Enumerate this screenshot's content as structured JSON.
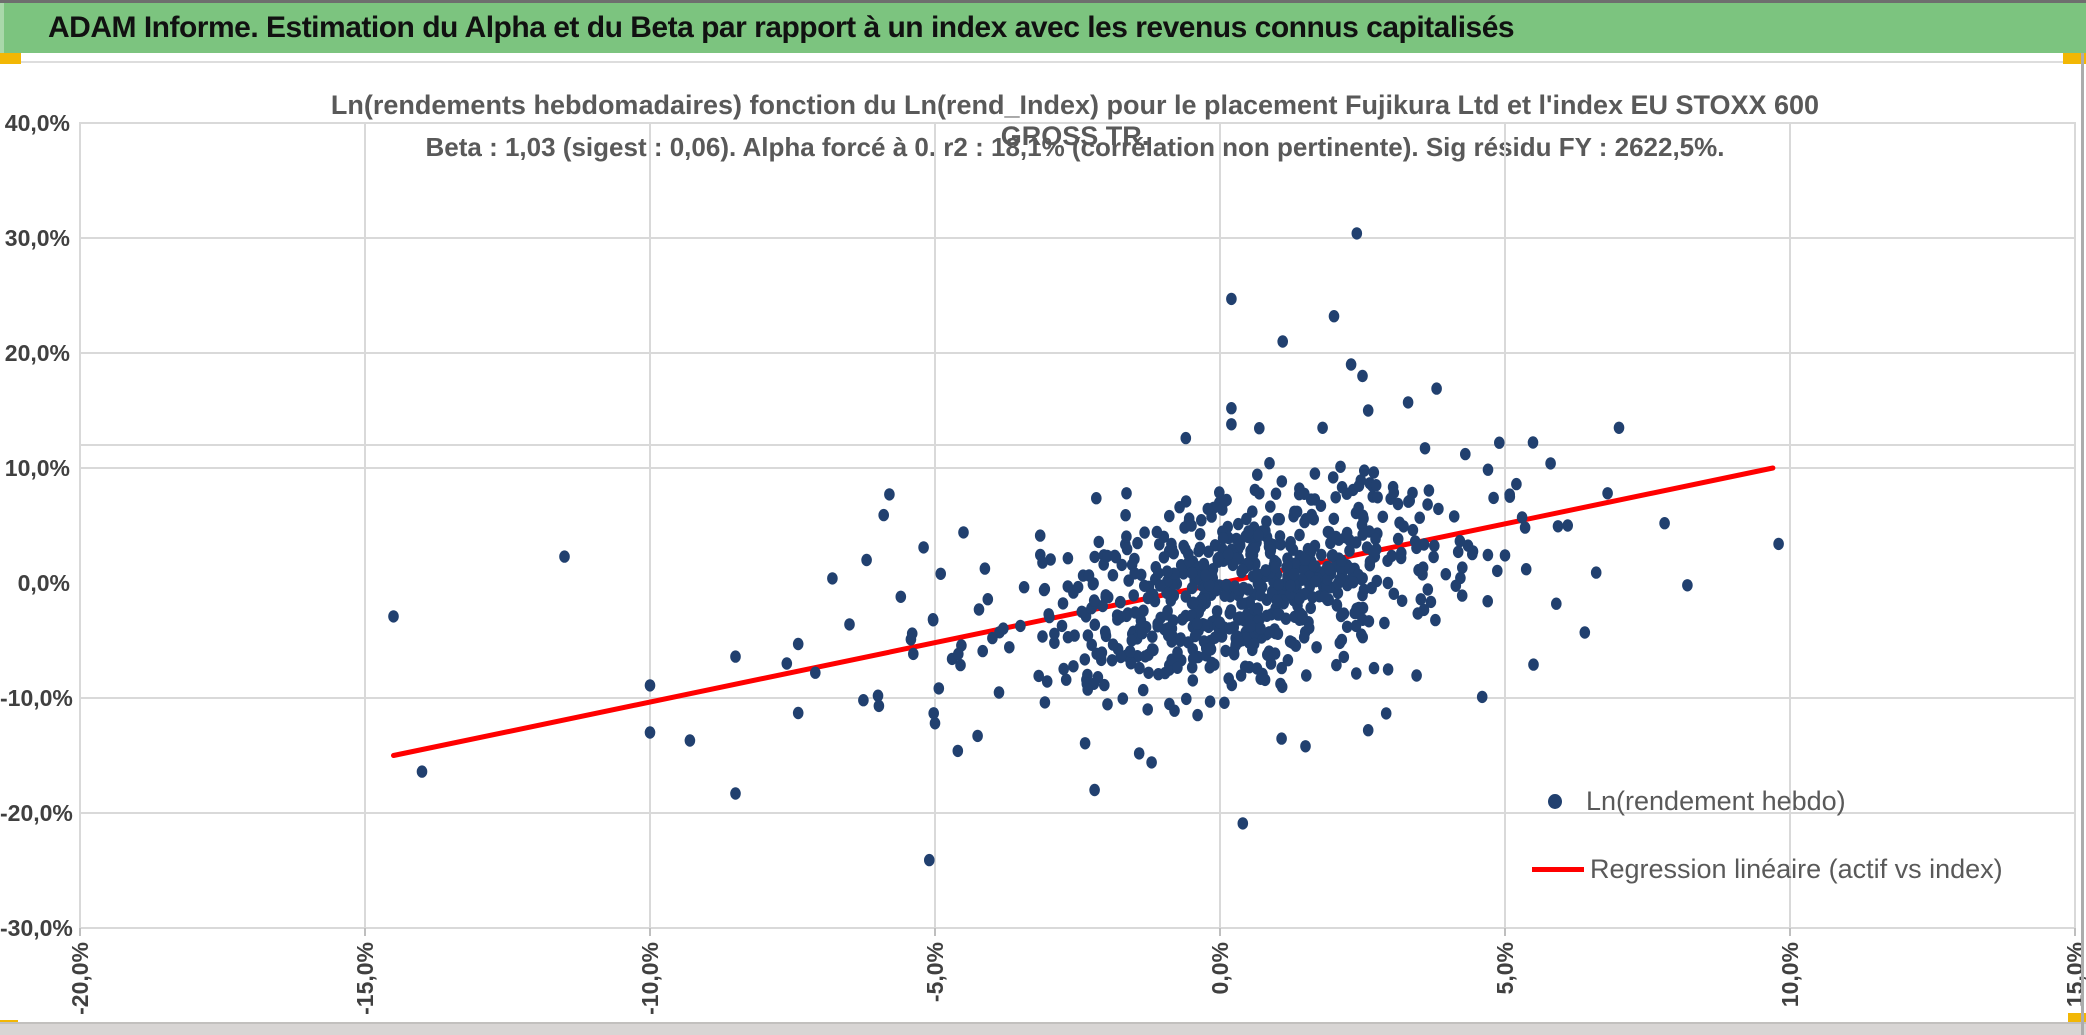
{
  "header": {
    "title": "ADAM Informe. Estimation du Alpha et du Beta par rapport à un index avec les revenus connus capitalisés"
  },
  "colors": {
    "header_green": "#7CC47F",
    "header_green_light": "#A9D8AA",
    "corner_accent_orange": "#F2B705",
    "scatter_navy": "#21406F",
    "regression_red": "#FF0000",
    "grid_gray": "#D9D9D9",
    "title_gray": "#595959",
    "tick_gray": "#404040"
  },
  "chart_data": {
    "type": "scatter",
    "title_line1": "Ln(rendements hebdomadaires) fonction du Ln(rend_Index) pour le placement Fujikura Ltd et l'index EU STOXX 600 GROSS TR.",
    "title_line2": "Beta : 1,03 (sigest : 0,06). Alpha forcé à 0. r2 : 18,1% (corrélation non pertinente). Sig résidu FY : 2622,5%.",
    "xlabel": "",
    "ylabel": "",
    "xlim": [
      -20,
      15
    ],
    "ylim": [
      -30,
      40
    ],
    "x_ticks": [
      {
        "v": -20,
        "label": "-20,0%"
      },
      {
        "v": -15,
        "label": "-15,0%"
      },
      {
        "v": -10,
        "label": "-10,0%"
      },
      {
        "v": -5,
        "label": "-5,0%"
      },
      {
        "v": 0,
        "label": "0,0%"
      },
      {
        "v": 5,
        "label": "5,0%"
      },
      {
        "v": 10,
        "label": "10,0%"
      },
      {
        "v": 15,
        "label": "15,0%"
      }
    ],
    "y_ticks": [
      {
        "v": 40,
        "label": "40,0%"
      },
      {
        "v": 30,
        "label": "30,0%"
      },
      {
        "v": 20,
        "label": "20,0%"
      },
      {
        "v": 10,
        "label": "10,0%"
      },
      {
        "v": 0,
        "label": "0,0%"
      },
      {
        "v": -10,
        "label": "-10,0%"
      },
      {
        "v": -20,
        "label": "-20,0%"
      },
      {
        "v": -30,
        "label": "-30,0%"
      }
    ],
    "grid": {
      "color": "#D9D9D9",
      "vertical_pct": [
        -15,
        -10,
        -5,
        0,
        5,
        10
      ],
      "horizontal_pct": [
        30,
        20,
        12,
        10,
        -10,
        -20
      ]
    },
    "legend": {
      "position": "bottom-right"
    },
    "series": [
      {
        "name": "Ln(rendement hebdo)",
        "type": "scatter",
        "color": "#21406F",
        "points": [
          [
            -14.5,
            -2.9
          ],
          [
            -14.0,
            -16.4
          ],
          [
            -11.5,
            2.3
          ],
          [
            -10.0,
            -8.9
          ],
          [
            -10.0,
            -13.0
          ],
          [
            -9.3,
            -13.7
          ],
          [
            -8.5,
            -6.4
          ],
          [
            -8.5,
            -18.3
          ],
          [
            -7.6,
            -7.0
          ],
          [
            -7.4,
            -5.3
          ],
          [
            -7.4,
            -11.3
          ],
          [
            -7.1,
            -7.8
          ],
          [
            -6.8,
            0.4
          ],
          [
            -6.5,
            -3.6
          ],
          [
            -6.2,
            2.0
          ],
          [
            -6.0,
            -9.8
          ],
          [
            -5.9,
            5.9
          ],
          [
            -5.8,
            7.7
          ],
          [
            -5.6,
            -1.2
          ],
          [
            -5.4,
            -4.4
          ],
          [
            -5.2,
            3.1
          ],
          [
            -5.1,
            -24.1
          ],
          [
            -5.0,
            -12.2
          ],
          [
            -4.9,
            0.8
          ],
          [
            -4.7,
            -6.6
          ],
          [
            -4.6,
            -14.6
          ],
          [
            -4.5,
            4.4
          ],
          [
            -2.2,
            -18.0
          ],
          [
            -1.2,
            -15.6
          ],
          [
            0.4,
            -20.9
          ],
          [
            1.5,
            -14.2
          ],
          [
            2.6,
            -12.8
          ],
          [
            0.2,
            24.7
          ],
          [
            2.4,
            30.4
          ],
          [
            2.0,
            23.2
          ],
          [
            1.1,
            21.0
          ],
          [
            2.3,
            19.0
          ],
          [
            2.5,
            18.0
          ],
          [
            3.3,
            15.7
          ],
          [
            0.2,
            15.2
          ],
          [
            2.6,
            15.0
          ],
          [
            0.2,
            13.8
          ],
          [
            1.8,
            13.5
          ],
          [
            -0.6,
            12.6
          ],
          [
            3.8,
            16.9
          ],
          [
            4.9,
            12.2
          ],
          [
            5.2,
            8.6
          ],
          [
            5.5,
            -7.1
          ],
          [
            5.8,
            10.4
          ],
          [
            6.1,
            5.0
          ],
          [
            6.4,
            -4.3
          ],
          [
            6.6,
            0.9
          ],
          [
            6.8,
            7.8
          ],
          [
            7.0,
            13.5
          ],
          [
            7.8,
            5.2
          ],
          [
            8.2,
            -0.2
          ],
          [
            9.8,
            3.4
          ],
          [
            4.6,
            -9.9
          ],
          [
            5.0,
            2.4
          ],
          [
            5.3,
            5.7
          ],
          [
            5.9,
            -1.8
          ],
          [
            4.8,
            7.4
          ]
        ],
        "clouds": [
          {
            "count": 540,
            "x_mean": 0.7,
            "x_std": 1.45,
            "y_mean": 0.0,
            "y_std": 4.6,
            "corr": 0.4,
            "x_range": [
              -4.2,
              5.2
            ],
            "y_range": [
              -14.5,
              14.5
            ],
            "seed": 7
          },
          {
            "count": 130,
            "x_mean": -1.8,
            "x_std": 1.9,
            "y_mean": -1.5,
            "y_std": 5.2,
            "corr": 0.45,
            "x_range": [
              -6.5,
              1.5
            ],
            "y_range": [
              -15.0,
              12.0
            ],
            "seed": 99
          },
          {
            "count": 60,
            "x_mean": 2.8,
            "x_std": 1.4,
            "y_mean": 1.5,
            "y_std": 5.0,
            "corr": 0.3,
            "x_range": [
              0.5,
              6.5
            ],
            "y_range": [
              -11.0,
              13.0
            ],
            "seed": 123
          }
        ]
      },
      {
        "name": "Regression linéaire (actif vs index)",
        "type": "line",
        "color": "#FF0000",
        "x1": -14.5,
        "y1": -15.0,
        "x2": 9.7,
        "y2": 10.0
      }
    ]
  }
}
